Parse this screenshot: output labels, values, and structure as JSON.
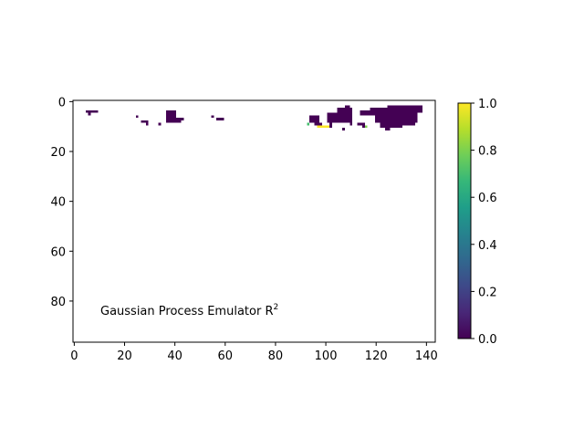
{
  "chart_data": {
    "type": "heatmap",
    "title": "",
    "xlabel": "",
    "ylabel": "",
    "annotation": {
      "text": "Gaussian Process Emulator R",
      "superscript": "2"
    },
    "xlim": [
      -0.5,
      143.5
    ],
    "ylim": [
      96.5,
      -0.5
    ],
    "y_axis_inverted": true,
    "x_ticks": [
      0,
      20,
      40,
      60,
      80,
      100,
      120,
      140
    ],
    "x_tick_labels": [
      "0",
      "20",
      "40",
      "60",
      "80",
      "100",
      "120",
      "140"
    ],
    "y_ticks": [
      0,
      20,
      40,
      60,
      80
    ],
    "y_tick_labels": [
      "0",
      "20",
      "40",
      "60",
      "80"
    ],
    "colormap": "viridis",
    "colorbar": {
      "min": 0.0,
      "max": 1.0,
      "ticks": [
        0.0,
        0.2,
        0.4,
        0.6,
        0.8,
        1.0
      ],
      "tick_labels": [
        "0.0",
        "0.2",
        "0.4",
        "0.6",
        "0.8",
        "1.0"
      ],
      "stops": [
        "#440154",
        "#482777",
        "#3e4989",
        "#31688e",
        "#26828e",
        "#1f9e89",
        "#35b779",
        "#6ece58",
        "#b5de2b",
        "#fde725"
      ]
    },
    "grid": false,
    "missing_values": "blank (NaN)",
    "cells": [
      {
        "x0": 5,
        "x1": 10,
        "y0": 4,
        "y1": 5,
        "value": 0.0
      },
      {
        "x0": 6,
        "x1": 7,
        "y0": 5,
        "y1": 6,
        "value": 0.0
      },
      {
        "x0": 25,
        "x1": 26,
        "y0": 6,
        "y1": 7,
        "value": 0.0
      },
      {
        "x0": 27,
        "x1": 30,
        "y0": 8,
        "y1": 9,
        "value": 0.0
      },
      {
        "x0": 29,
        "x1": 30,
        "y0": 9,
        "y1": 10,
        "value": 0.0
      },
      {
        "x0": 34,
        "x1": 35,
        "y0": 9,
        "y1": 10,
        "value": 0.0
      },
      {
        "x0": 37,
        "x1": 41,
        "y0": 4,
        "y1": 7,
        "value": 0.0
      },
      {
        "x0": 37,
        "x1": 43,
        "y0": 7,
        "y1": 9,
        "value": 0.0
      },
      {
        "x0": 43,
        "x1": 44,
        "y0": 7,
        "y1": 8,
        "value": 0.0
      },
      {
        "x0": 55,
        "x1": 56,
        "y0": 6,
        "y1": 7,
        "value": 0.0
      },
      {
        "x0": 57,
        "x1": 60,
        "y0": 7,
        "y1": 8,
        "value": 0.0
      },
      {
        "x0": 94,
        "x1": 98,
        "y0": 6,
        "y1": 9,
        "value": 0.0
      },
      {
        "x0": 96,
        "x1": 99,
        "y0": 9,
        "y1": 10,
        "value": 0.0
      },
      {
        "x0": 93,
        "x1": 94,
        "y0": 9,
        "y1": 10,
        "value": 0.7
      },
      {
        "x0": 97,
        "x1": 102,
        "y0": 10,
        "y1": 11,
        "value": 1.0
      },
      {
        "x0": 101,
        "x1": 104,
        "y0": 5,
        "y1": 9,
        "value": 0.0
      },
      {
        "x0": 104,
        "x1": 109,
        "y0": 5,
        "y1": 9,
        "value": 0.0
      },
      {
        "x0": 105,
        "x1": 111,
        "y0": 3,
        "y1": 9,
        "value": 0.0
      },
      {
        "x0": 108,
        "x1": 110,
        "y0": 2,
        "y1": 4,
        "value": 0.0
      },
      {
        "x0": 102,
        "x1": 103,
        "y0": 9,
        "y1": 11,
        "value": 0.0
      },
      {
        "x0": 110,
        "x1": 111,
        "y0": 9,
        "y1": 10,
        "value": 0.0
      },
      {
        "x0": 107,
        "x1": 108,
        "y0": 11,
        "y1": 12,
        "value": 0.0
      },
      {
        "x0": 113,
        "x1": 116,
        "y0": 9,
        "y1": 10,
        "value": 0.0
      },
      {
        "x0": 115,
        "x1": 117,
        "y0": 10,
        "y1": 11,
        "value": 0.0
      },
      {
        "x0": 116,
        "x1": 117,
        "y0": 10,
        "y1": 11,
        "value": 0.8
      },
      {
        "x0": 118,
        "x1": 133,
        "y0": 3,
        "y1": 6,
        "value": 0.0
      },
      {
        "x0": 125,
        "x1": 139,
        "y0": 2,
        "y1": 5,
        "value": 0.0
      },
      {
        "x0": 114,
        "x1": 121,
        "y0": 4,
        "y1": 6,
        "value": 0.0
      },
      {
        "x0": 120,
        "x1": 137,
        "y0": 5,
        "y1": 9,
        "value": 0.0
      },
      {
        "x0": 122,
        "x1": 131,
        "y0": 9,
        "y1": 11,
        "value": 0.0
      },
      {
        "x0": 124,
        "x1": 126,
        "y0": 11,
        "y1": 12,
        "value": 0.0
      },
      {
        "x0": 131,
        "x1": 136,
        "y0": 9,
        "y1": 10,
        "value": 0.0
      },
      {
        "x0": 134,
        "x1": 136,
        "y0": 8,
        "y1": 9,
        "value": 0.0
      },
      {
        "x0": 136,
        "x1": 139,
        "y0": 3,
        "y1": 5,
        "value": 0.0
      }
    ]
  }
}
